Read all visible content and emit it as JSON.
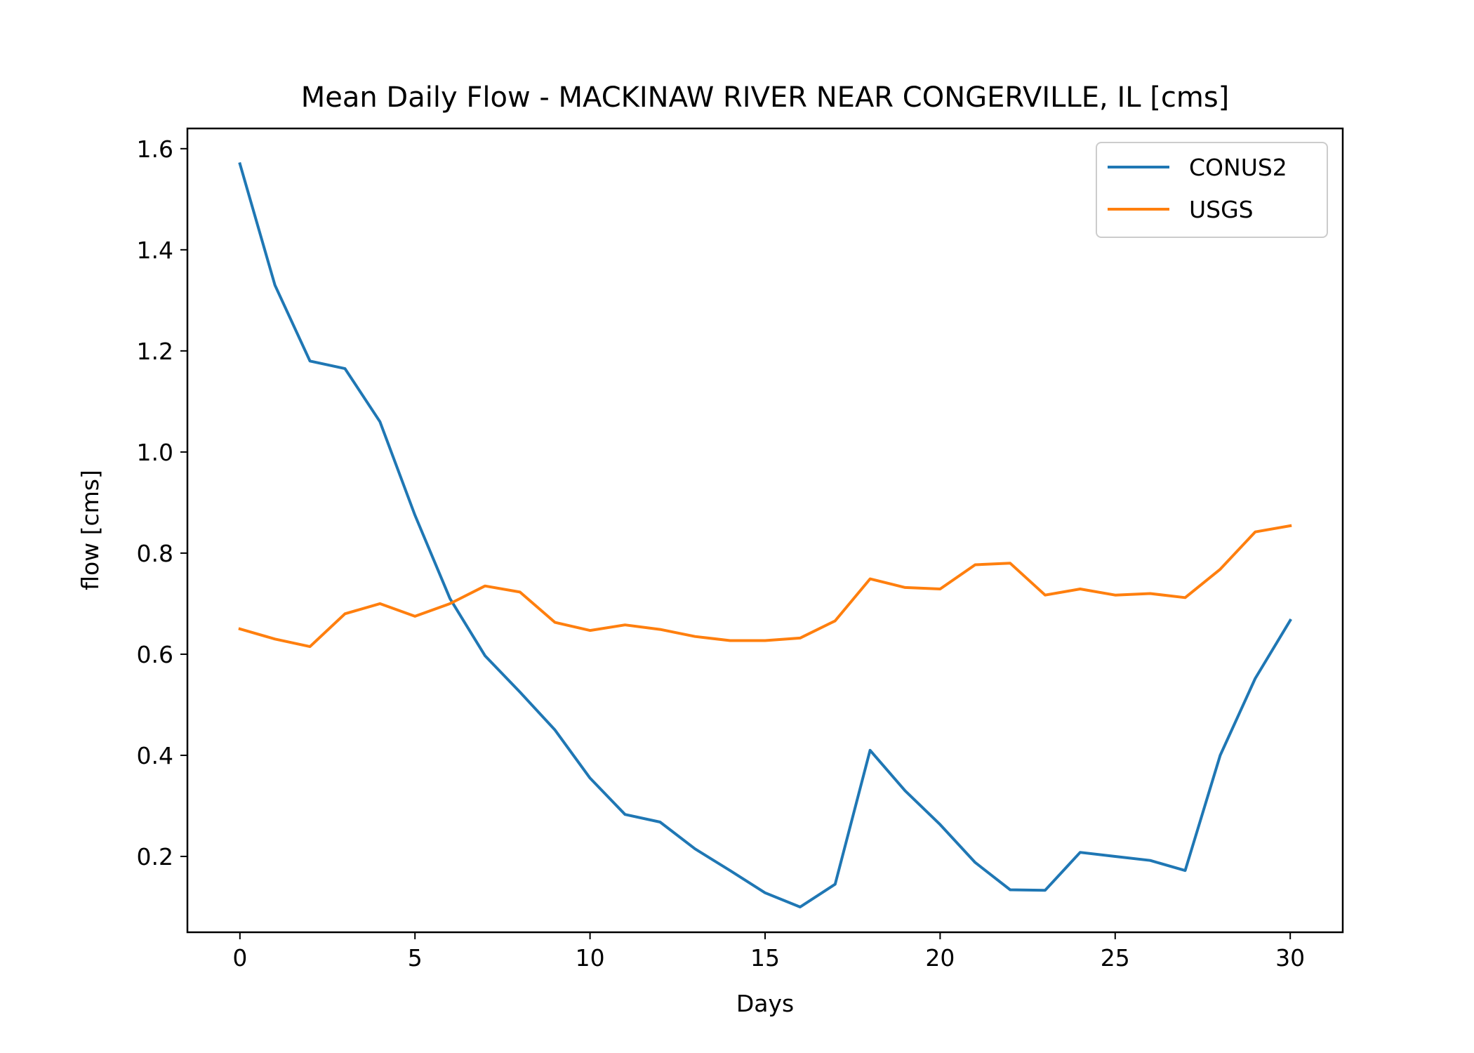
{
  "chart_data": {
    "type": "line",
    "title": "Mean Daily Flow - MACKINAW RIVER NEAR CONGERVILLE, IL [cms]",
    "xlabel": "Days",
    "ylabel": "flow [cms]",
    "xlim": [
      -1.5,
      31.5
    ],
    "ylim": [
      0.05,
      1.64
    ],
    "xticks": [
      0,
      5,
      10,
      15,
      20,
      25,
      30
    ],
    "xtick_labels": [
      "0",
      "5",
      "10",
      "15",
      "20",
      "25",
      "30"
    ],
    "yticks": [
      0.2,
      0.4,
      0.6,
      0.8,
      1.0,
      1.2,
      1.4,
      1.6
    ],
    "ytick_labels": [
      "0.2",
      "0.4",
      "0.6",
      "0.8",
      "1.0",
      "1.2",
      "1.4",
      "1.6"
    ],
    "grid": false,
    "legend_position": "top-right",
    "x": [
      0,
      1,
      2,
      3,
      4,
      5,
      6,
      7,
      8,
      9,
      10,
      11,
      12,
      13,
      14,
      15,
      16,
      17,
      18,
      19,
      20,
      21,
      22,
      23,
      24,
      25,
      26,
      27,
      28,
      29,
      30
    ],
    "series": [
      {
        "name": "CONUS2",
        "color": "#1f77b4",
        "values": [
          1.57,
          1.33,
          1.18,
          1.165,
          1.06,
          0.875,
          0.71,
          0.597,
          0.525,
          0.45,
          0.355,
          0.283,
          0.268,
          0.215,
          0.172,
          0.128,
          0.1,
          0.145,
          0.41,
          0.33,
          0.263,
          0.188,
          0.134,
          0.133,
          0.208,
          0.2,
          0.192,
          0.172,
          0.4,
          0.552,
          0.667
        ]
      },
      {
        "name": "USGS",
        "color": "#ff7f0e",
        "values": [
          0.65,
          0.63,
          0.615,
          0.68,
          0.7,
          0.675,
          0.7,
          0.735,
          0.723,
          0.663,
          0.647,
          0.658,
          0.649,
          0.635,
          0.627,
          0.627,
          0.632,
          0.666,
          0.749,
          0.732,
          0.729,
          0.777,
          0.78,
          0.717,
          0.729,
          0.717,
          0.72,
          0.712,
          0.768,
          0.842,
          0.854
        ]
      }
    ]
  }
}
